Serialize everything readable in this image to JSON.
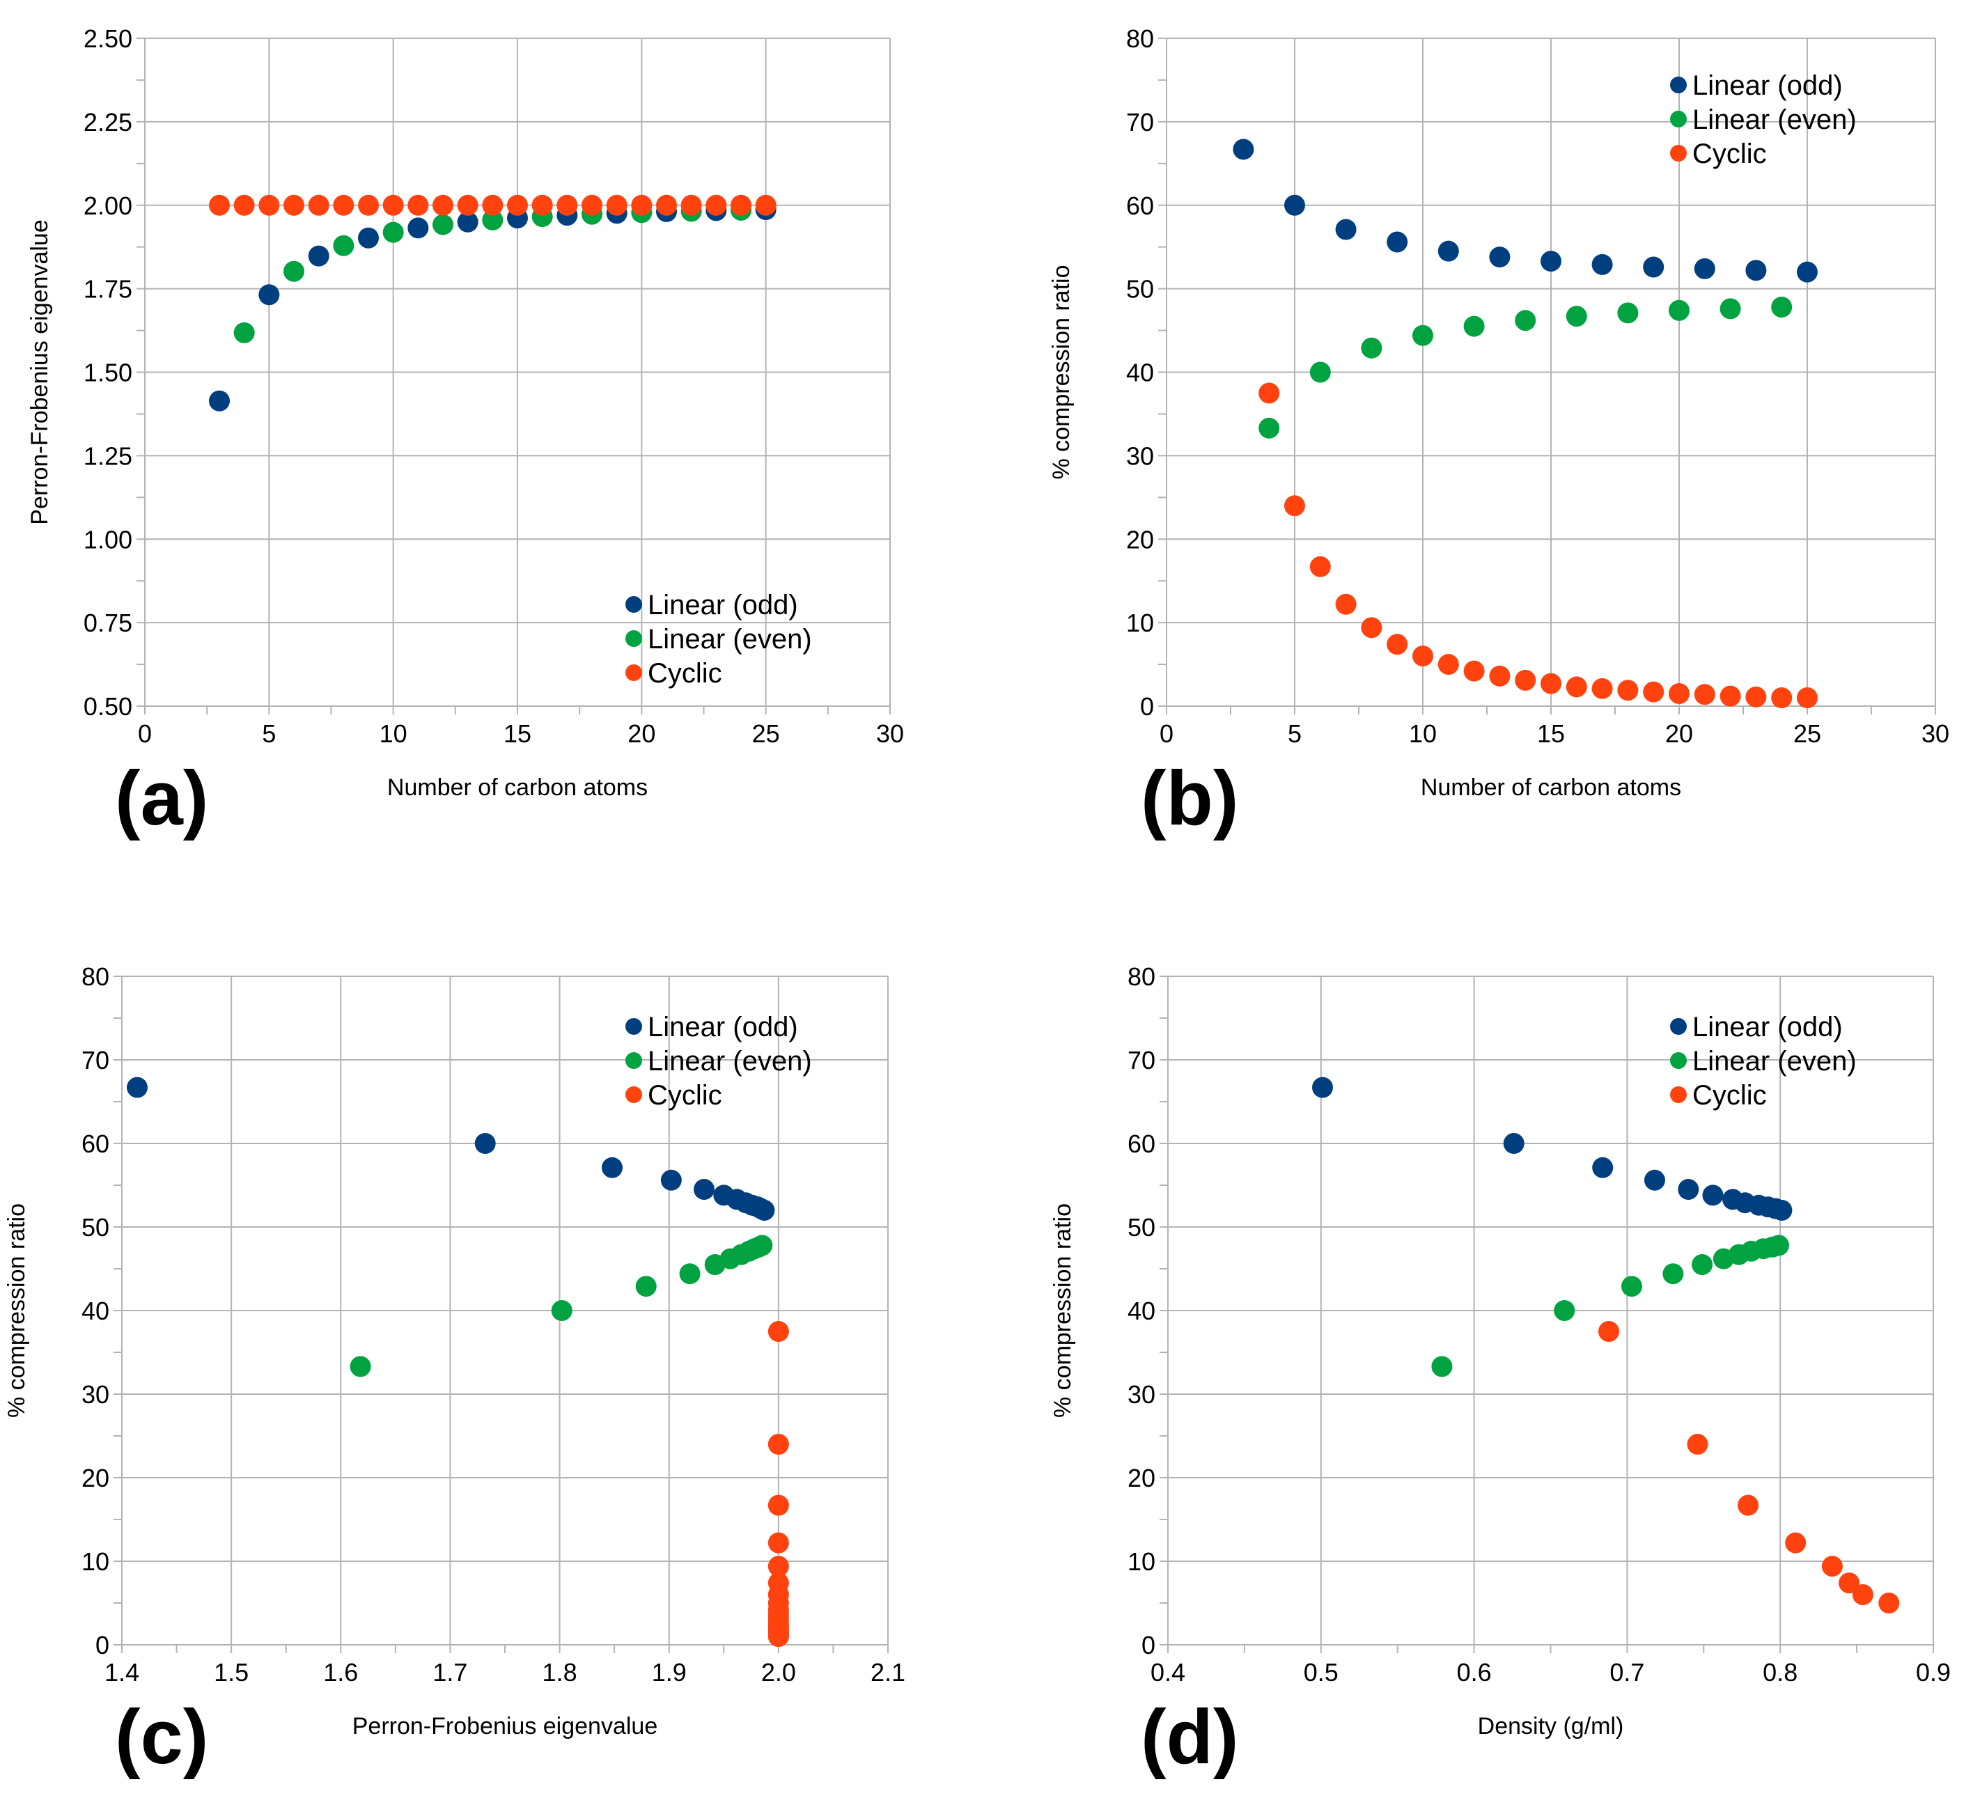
{
  "colors": {
    "odd": "#003f7f",
    "even": "#00a33f",
    "cyclic": "#ff420e",
    "grid": "#b3b3b3",
    "axis": "#b3b3b3",
    "text": "#000000"
  },
  "chart_data": [
    {
      "id": "a",
      "panel_label": "(a)",
      "type": "scatter",
      "xlabel": "Number of carbon atoms",
      "ylabel": "Perron-Frobenius eigenvalue",
      "xlim": [
        0,
        30
      ],
      "ylim": [
        0.5,
        2.5
      ],
      "xticks": [
        0,
        5,
        10,
        15,
        20,
        25,
        30
      ],
      "yticks": [
        0.5,
        0.75,
        1.0,
        1.25,
        1.5,
        1.75,
        2.0,
        2.25,
        2.5
      ],
      "xtick_labels": [
        "0",
        "5",
        "10",
        "15",
        "20",
        "25",
        "30"
      ],
      "ytick_labels": [
        "0.50",
        "0.75",
        "1.00",
        "1.25",
        "1.50",
        "1.75",
        "2.00",
        "2.25",
        "2.50"
      ],
      "x_minor_step": 2.5,
      "y_minor_step": 0.125,
      "legend_position": "bottom-right",
      "series": [
        {
          "name": "Linear (odd)",
          "color_key": "odd",
          "points": [
            [
              3,
              1.414
            ],
            [
              5,
              1.732
            ],
            [
              7,
              1.848
            ],
            [
              9,
              1.902
            ],
            [
              11,
              1.932
            ],
            [
              13,
              1.95
            ],
            [
              15,
              1.962
            ],
            [
              17,
              1.97
            ],
            [
              19,
              1.976
            ],
            [
              21,
              1.981
            ],
            [
              23,
              1.984
            ],
            [
              25,
              1.987
            ]
          ]
        },
        {
          "name": "Linear (even)",
          "color_key": "even",
          "points": [
            [
              4,
              1.618
            ],
            [
              6,
              1.802
            ],
            [
              8,
              1.879
            ],
            [
              10,
              1.919
            ],
            [
              12,
              1.942
            ],
            [
              14,
              1.956
            ],
            [
              16,
              1.966
            ],
            [
              18,
              1.973
            ],
            [
              20,
              1.978
            ],
            [
              22,
              1.982
            ],
            [
              24,
              1.985
            ]
          ]
        },
        {
          "name": "Cyclic",
          "color_key": "cyclic",
          "points": [
            [
              3,
              2
            ],
            [
              4,
              2
            ],
            [
              5,
              2
            ],
            [
              6,
              2
            ],
            [
              7,
              2
            ],
            [
              8,
              2
            ],
            [
              9,
              2
            ],
            [
              10,
              2
            ],
            [
              11,
              2
            ],
            [
              12,
              2
            ],
            [
              13,
              2
            ],
            [
              14,
              2
            ],
            [
              15,
              2
            ],
            [
              16,
              2
            ],
            [
              17,
              2
            ],
            [
              18,
              2
            ],
            [
              19,
              2
            ],
            [
              20,
              2
            ],
            [
              21,
              2
            ],
            [
              22,
              2
            ],
            [
              23,
              2
            ],
            [
              24,
              2
            ],
            [
              25,
              2
            ]
          ]
        }
      ]
    },
    {
      "id": "b",
      "panel_label": "(b)",
      "type": "scatter",
      "xlabel": "Number of carbon atoms",
      "ylabel": "% compression ratio",
      "xlim": [
        0,
        30
      ],
      "ylim": [
        0,
        80
      ],
      "xticks": [
        0,
        5,
        10,
        15,
        20,
        25,
        30
      ],
      "yticks": [
        0,
        10,
        20,
        30,
        40,
        50,
        60,
        70,
        80
      ],
      "xtick_labels": [
        "0",
        "5",
        "10",
        "15",
        "20",
        "25",
        "30"
      ],
      "ytick_labels": [
        "0",
        "10",
        "20",
        "30",
        "40",
        "50",
        "60",
        "70",
        "80"
      ],
      "x_minor_step": 2.5,
      "y_minor_step": 5,
      "legend_position": "top-right",
      "series": [
        {
          "name": "Linear (odd)",
          "color_key": "odd",
          "points": [
            [
              3,
              66.7
            ],
            [
              5,
              60.0
            ],
            [
              7,
              57.1
            ],
            [
              9,
              55.6
            ],
            [
              11,
              54.5
            ],
            [
              13,
              53.8
            ],
            [
              15,
              53.3
            ],
            [
              17,
              52.9
            ],
            [
              19,
              52.6
            ],
            [
              21,
              52.4
            ],
            [
              23,
              52.2
            ],
            [
              25,
              52.0
            ]
          ]
        },
        {
          "name": "Linear (even)",
          "color_key": "even",
          "points": [
            [
              4,
              33.3
            ],
            [
              6,
              40.0
            ],
            [
              8,
              42.9
            ],
            [
              10,
              44.4
            ],
            [
              12,
              45.5
            ],
            [
              14,
              46.2
            ],
            [
              16,
              46.7
            ],
            [
              18,
              47.1
            ],
            [
              20,
              47.4
            ],
            [
              22,
              47.6
            ],
            [
              24,
              47.8
            ]
          ]
        },
        {
          "name": "Cyclic",
          "color_key": "cyclic",
          "points": [
            [
              4,
              37.5
            ],
            [
              5,
              24.0
            ],
            [
              6,
              16.7
            ],
            [
              7,
              12.2
            ],
            [
              8,
              9.4
            ],
            [
              9,
              7.4
            ],
            [
              10,
              6.0
            ],
            [
              11,
              5.0
            ],
            [
              12,
              4.2
            ],
            [
              13,
              3.6
            ],
            [
              14,
              3.1
            ],
            [
              15,
              2.7
            ],
            [
              16,
              2.3
            ],
            [
              17,
              2.1
            ],
            [
              18,
              1.9
            ],
            [
              19,
              1.7
            ],
            [
              20,
              1.5
            ],
            [
              21,
              1.4
            ],
            [
              22,
              1.2
            ],
            [
              23,
              1.1
            ],
            [
              24,
              1.0
            ],
            [
              25,
              1.0
            ]
          ]
        }
      ]
    },
    {
      "id": "c",
      "panel_label": "(c)",
      "type": "scatter",
      "xlabel": "Perron-Frobenius eigenvalue",
      "ylabel": "% compression ratio",
      "xlim": [
        1.4,
        2.1
      ],
      "ylim": [
        0,
        80
      ],
      "xticks": [
        1.4,
        1.5,
        1.6,
        1.7,
        1.8,
        1.9,
        2.0,
        2.1
      ],
      "yticks": [
        0,
        10,
        20,
        30,
        40,
        50,
        60,
        70,
        80
      ],
      "xtick_labels": [
        "1.4",
        "1.5",
        "1.6",
        "1.7",
        "1.8",
        "1.9",
        "2.0",
        "2.1"
      ],
      "ytick_labels": [
        "0",
        "10",
        "20",
        "30",
        "40",
        "50",
        "60",
        "70",
        "80"
      ],
      "x_minor_step": 0.05,
      "y_minor_step": 5,
      "legend_position": "top-right",
      "series": [
        {
          "name": "Linear (odd)",
          "color_key": "odd",
          "points": [
            [
              1.414,
              66.7
            ],
            [
              1.732,
              60.0
            ],
            [
              1.848,
              57.1
            ],
            [
              1.902,
              55.6
            ],
            [
              1.932,
              54.5
            ],
            [
              1.95,
              53.8
            ],
            [
              1.962,
              53.3
            ],
            [
              1.97,
              52.9
            ],
            [
              1.976,
              52.6
            ],
            [
              1.981,
              52.4
            ],
            [
              1.984,
              52.2
            ],
            [
              1.987,
              52.0
            ]
          ]
        },
        {
          "name": "Linear (even)",
          "color_key": "even",
          "points": [
            [
              1.618,
              33.3
            ],
            [
              1.802,
              40.0
            ],
            [
              1.879,
              42.9
            ],
            [
              1.919,
              44.4
            ],
            [
              1.942,
              45.5
            ],
            [
              1.956,
              46.2
            ],
            [
              1.966,
              46.7
            ],
            [
              1.973,
              47.1
            ],
            [
              1.978,
              47.4
            ],
            [
              1.982,
              47.6
            ],
            [
              1.985,
              47.8
            ]
          ]
        },
        {
          "name": "Cyclic",
          "color_key": "cyclic",
          "points": [
            [
              2.0,
              37.5
            ],
            [
              2.0,
              24.0
            ],
            [
              2.0,
              16.7
            ],
            [
              2.0,
              12.2
            ],
            [
              2.0,
              9.4
            ],
            [
              2.0,
              7.4
            ],
            [
              2.0,
              6.0
            ],
            [
              2.0,
              5.0
            ],
            [
              2.0,
              4.2
            ],
            [
              2.0,
              3.6
            ],
            [
              2.0,
              3.1
            ],
            [
              2.0,
              2.7
            ],
            [
              2.0,
              2.3
            ],
            [
              2.0,
              2.1
            ],
            [
              2.0,
              1.9
            ],
            [
              2.0,
              1.7
            ],
            [
              2.0,
              1.5
            ],
            [
              2.0,
              1.4
            ],
            [
              2.0,
              1.2
            ],
            [
              2.0,
              1.1
            ],
            [
              2.0,
              1.0
            ],
            [
              2.0,
              1.0
            ]
          ]
        }
      ]
    },
    {
      "id": "d",
      "panel_label": "(d)",
      "type": "scatter",
      "xlabel": "Density (g/ml)",
      "ylabel": "% compression ratio",
      "xlim": [
        0.4,
        0.9
      ],
      "ylim": [
        0,
        80
      ],
      "xticks": [
        0.4,
        0.5,
        0.6,
        0.7,
        0.8,
        0.9
      ],
      "yticks": [
        0,
        10,
        20,
        30,
        40,
        50,
        60,
        70,
        80
      ],
      "xtick_labels": [
        "0.4",
        "0.5",
        "0.6",
        "0.7",
        "0.8",
        "0.9"
      ],
      "ytick_labels": [
        "0",
        "10",
        "20",
        "30",
        "40",
        "50",
        "60",
        "70",
        "80"
      ],
      "x_minor_step": 0.05,
      "y_minor_step": 5,
      "legend_position": "top-right",
      "series": [
        {
          "name": "Linear (odd)",
          "color_key": "odd",
          "points": [
            [
              0.501,
              66.7
            ],
            [
              0.626,
              60.0
            ],
            [
              0.684,
              57.1
            ],
            [
              0.718,
              55.6
            ],
            [
              0.74,
              54.5
            ],
            [
              0.756,
              53.8
            ],
            [
              0.769,
              53.3
            ],
            [
              0.777,
              52.9
            ],
            [
              0.786,
              52.6
            ],
            [
              0.792,
              52.4
            ],
            [
              0.797,
              52.2
            ],
            [
              0.801,
              52.0
            ]
          ]
        },
        {
          "name": "Linear (even)",
          "color_key": "even",
          "points": [
            [
              0.579,
              33.3
            ],
            [
              0.659,
              40.0
            ],
            [
              0.703,
              42.9
            ],
            [
              0.73,
              44.4
            ],
            [
              0.749,
              45.5
            ],
            [
              0.763,
              46.2
            ],
            [
              0.773,
              46.7
            ],
            [
              0.781,
              47.1
            ],
            [
              0.789,
              47.4
            ],
            [
              0.795,
              47.6
            ],
            [
              0.799,
              47.8
            ]
          ]
        },
        {
          "name": "Cyclic",
          "color_key": "cyclic",
          "points": [
            [
              0.688,
              37.5
            ],
            [
              0.746,
              24.0
            ],
            [
              0.779,
              16.7
            ],
            [
              0.81,
              12.2
            ],
            [
              0.834,
              9.4
            ],
            [
              0.845,
              7.4
            ],
            [
              0.854,
              6.0
            ],
            [
              0.871,
              5.0
            ]
          ]
        }
      ]
    }
  ]
}
